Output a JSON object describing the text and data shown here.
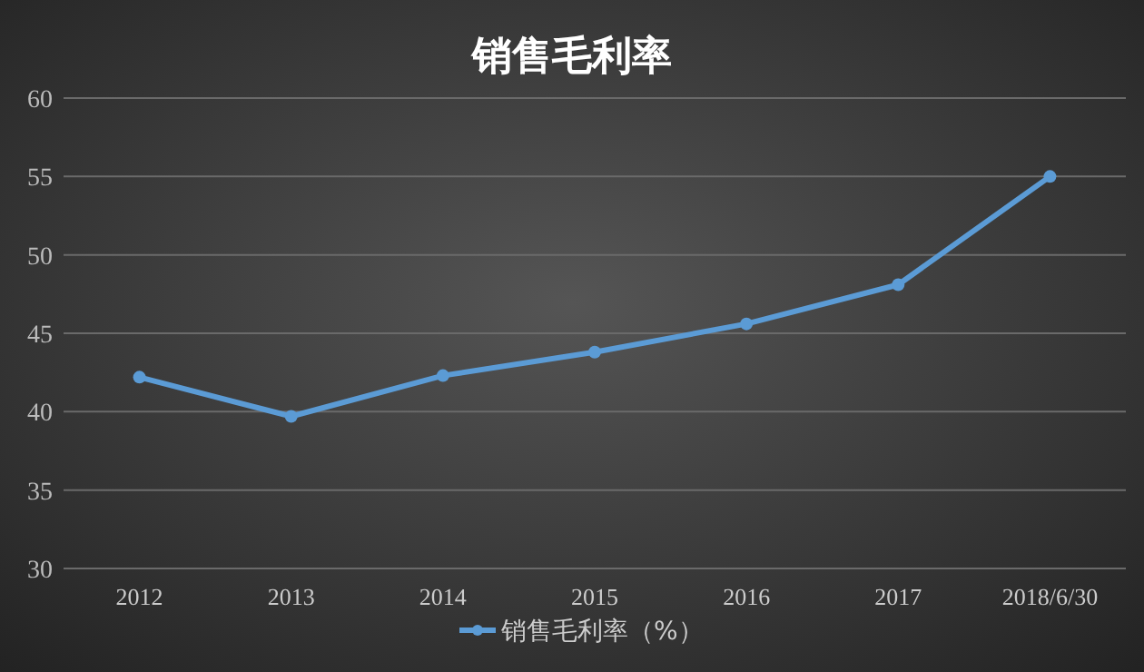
{
  "chart_data": {
    "type": "line",
    "title": "销售毛利率",
    "categories": [
      "2012",
      "2013",
      "2014",
      "2015",
      "2016",
      "2017",
      "2018/6/30"
    ],
    "series": [
      {
        "name": "销售毛利率（%）",
        "color": "#5b9bd5",
        "values": [
          42.2,
          39.7,
          42.3,
          43.8,
          45.6,
          48.1,
          55.0
        ]
      }
    ],
    "ylim": [
      30,
      60
    ],
    "yticks": [
      30,
      35,
      40,
      45,
      50,
      55,
      60
    ],
    "grid": "y",
    "legend": "bottom",
    "marker": "circle",
    "line_style": "solid"
  }
}
